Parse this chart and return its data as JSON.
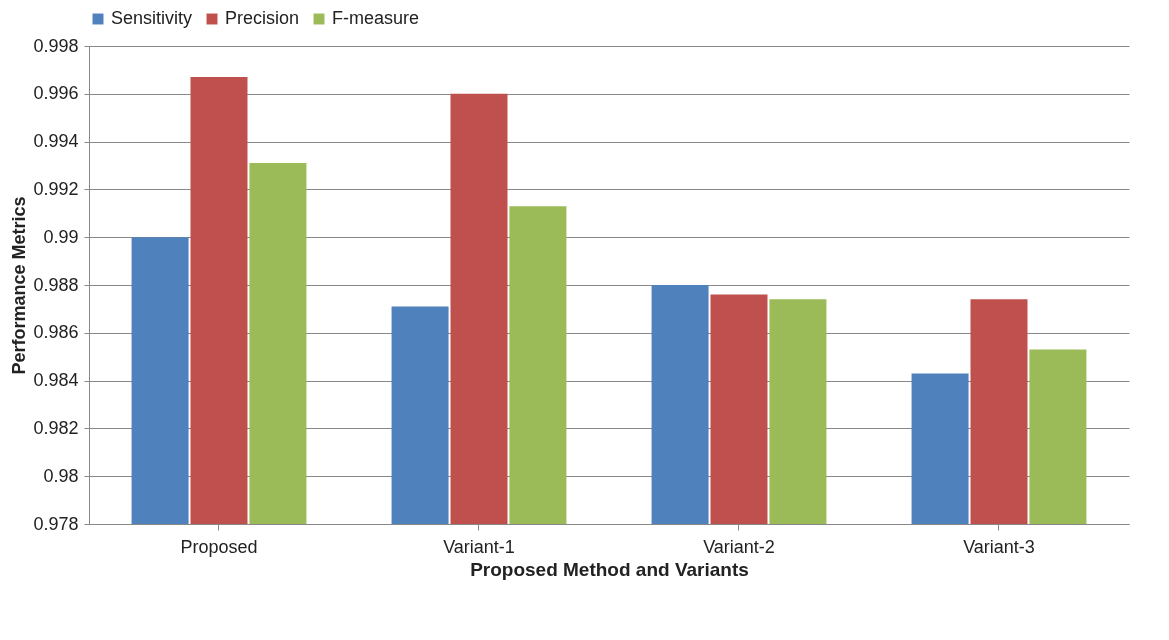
{
  "chart_data": {
    "type": "bar",
    "xlabel": "Proposed Method and Variants",
    "ylabel": "Performance Metrics",
    "categories": [
      "Proposed",
      "Variant-1",
      "Variant-2",
      "Variant-3"
    ],
    "series": [
      {
        "name": "Sensitivity",
        "color": "#4f81bd",
        "values": [
          0.99,
          0.9871,
          0.988,
          0.9843
        ]
      },
      {
        "name": "Precision",
        "color": "#c0504d",
        "values": [
          0.9967,
          0.996,
          0.9876,
          0.9874
        ]
      },
      {
        "name": "F-measure",
        "color": "#9bbb59",
        "values": [
          0.9931,
          0.9913,
          0.9874,
          0.9853
        ]
      }
    ],
    "ylim": [
      0.978,
      0.998
    ],
    "yticks": [
      0.978,
      0.98,
      0.982,
      0.984,
      0.986,
      0.988,
      0.99,
      0.992,
      0.994,
      0.996,
      0.998
    ],
    "grid": "y",
    "legend": "top"
  }
}
